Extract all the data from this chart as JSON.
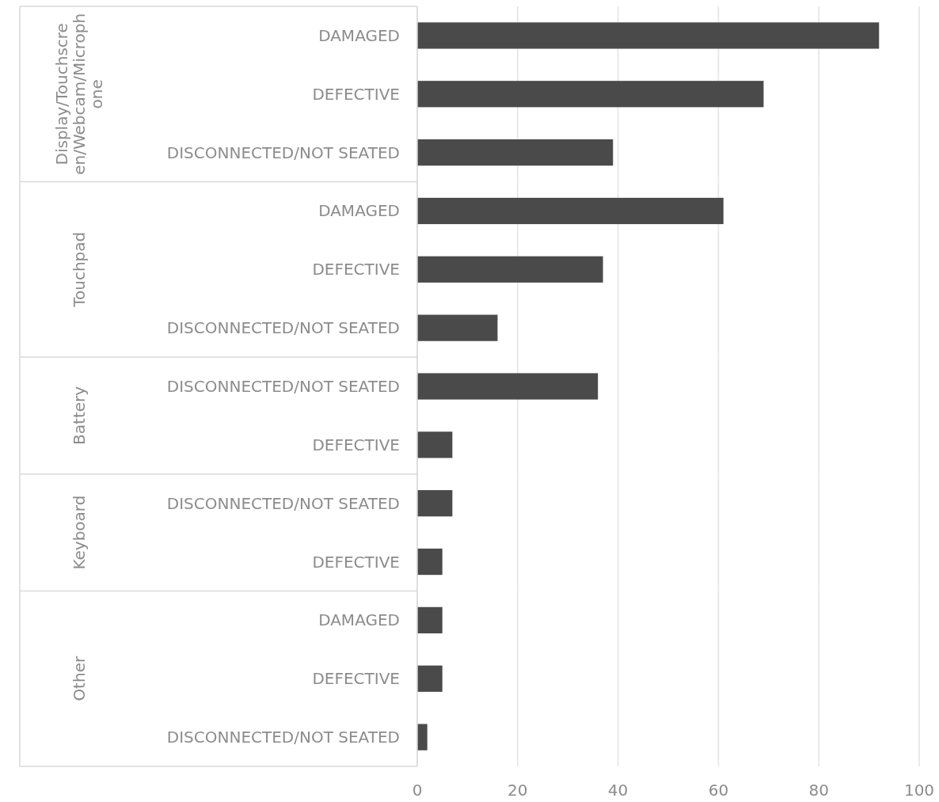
{
  "chart_data": [
    {
      "type": "bar",
      "orientation": "horizontal",
      "ylabel": "Display/Touchscreen/Webcam/Microphone",
      "categories": [
        "DAMAGED",
        "DEFECTIVE",
        "DISCONNECTED/NOT SEATED"
      ],
      "values": [
        92,
        69,
        39
      ],
      "color": "#4a4a4a",
      "xlim": [
        0,
        100
      ],
      "xticks": [
        0,
        20,
        40,
        60,
        80,
        100
      ],
      "grid": "x",
      "tick_labels": "y"
    },
    {
      "type": "bar",
      "orientation": "horizontal",
      "ylabel": "Touchpad",
      "categories": [
        "DAMAGED",
        "DEFECTIVE",
        "DISCONNECTED/NOT SEATED"
      ],
      "values": [
        61,
        37,
        16
      ],
      "color": "#4a4a4a",
      "xlim": [
        0,
        100
      ],
      "xticks": [
        0,
        20,
        40,
        60,
        80,
        100
      ],
      "grid": "x",
      "tick_labels": "y"
    },
    {
      "type": "bar",
      "orientation": "horizontal",
      "ylabel": "Battery",
      "categories": [
        "DISCONNECTED/NOT SEATED",
        "DEFECTIVE"
      ],
      "values": [
        36,
        7
      ],
      "color": "#4a4a4a",
      "xlim": [
        0,
        100
      ],
      "xticks": [
        0,
        20,
        40,
        60,
        80,
        100
      ],
      "grid": "x",
      "tick_labels": "y"
    },
    {
      "type": "bar",
      "orientation": "horizontal",
      "ylabel": "Keyboard",
      "categories": [
        "DISCONNECTED/NOT SEATED",
        "DEFECTIVE"
      ],
      "values": [
        7,
        5
      ],
      "color": "#4a4a4a",
      "xlim": [
        0,
        100
      ],
      "xticks": [
        0,
        20,
        40,
        60,
        80,
        100
      ],
      "grid": "x",
      "tick_labels": "y"
    },
    {
      "type": "bar",
      "orientation": "horizontal",
      "ylabel": "Other",
      "categories": [
        "DAMAGED",
        "DEFECTIVE",
        "DISCONNECTED/NOT SEATED"
      ],
      "values": [
        5,
        5,
        2
      ],
      "color": "#4a4a4a",
      "xlim": [
        0,
        100
      ],
      "xticks": [
        0,
        20,
        40,
        60,
        80,
        100
      ],
      "grid": "x"
    }
  ]
}
